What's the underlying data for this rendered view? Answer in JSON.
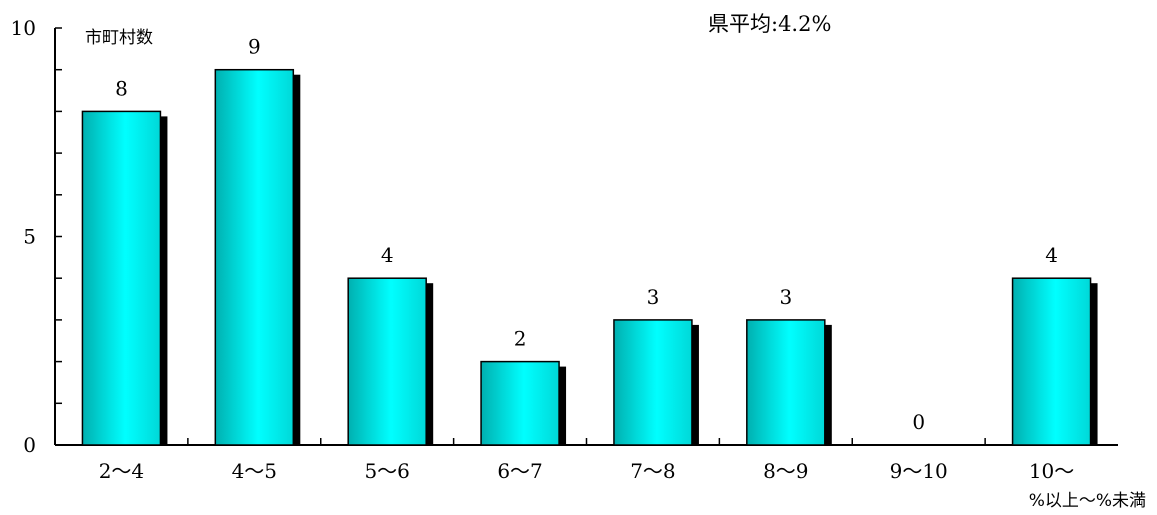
{
  "chart_data": {
    "type": "bar",
    "categories": [
      "2～4",
      "4～5",
      "5～6",
      "6～7",
      "7～8",
      "8～9",
      "9～10",
      "10～"
    ],
    "values": [
      8,
      9,
      4,
      2,
      3,
      3,
      0,
      4
    ],
    "data_labels": [
      "8",
      "9",
      "4",
      "2",
      "3",
      "3",
      "0",
      "4"
    ],
    "ylabel": "市町村数",
    "xlabel": "%以上～%未満",
    "annotation": "県平均:4.2%",
    "ylim": [
      0,
      10
    ],
    "yticks": [
      "0",
      "5",
      "10"
    ],
    "bar_color_light": "#00ffff",
    "bar_color_dark": "#00b0b0",
    "shadow_color": "#000000",
    "grid": false,
    "legend": "none"
  }
}
